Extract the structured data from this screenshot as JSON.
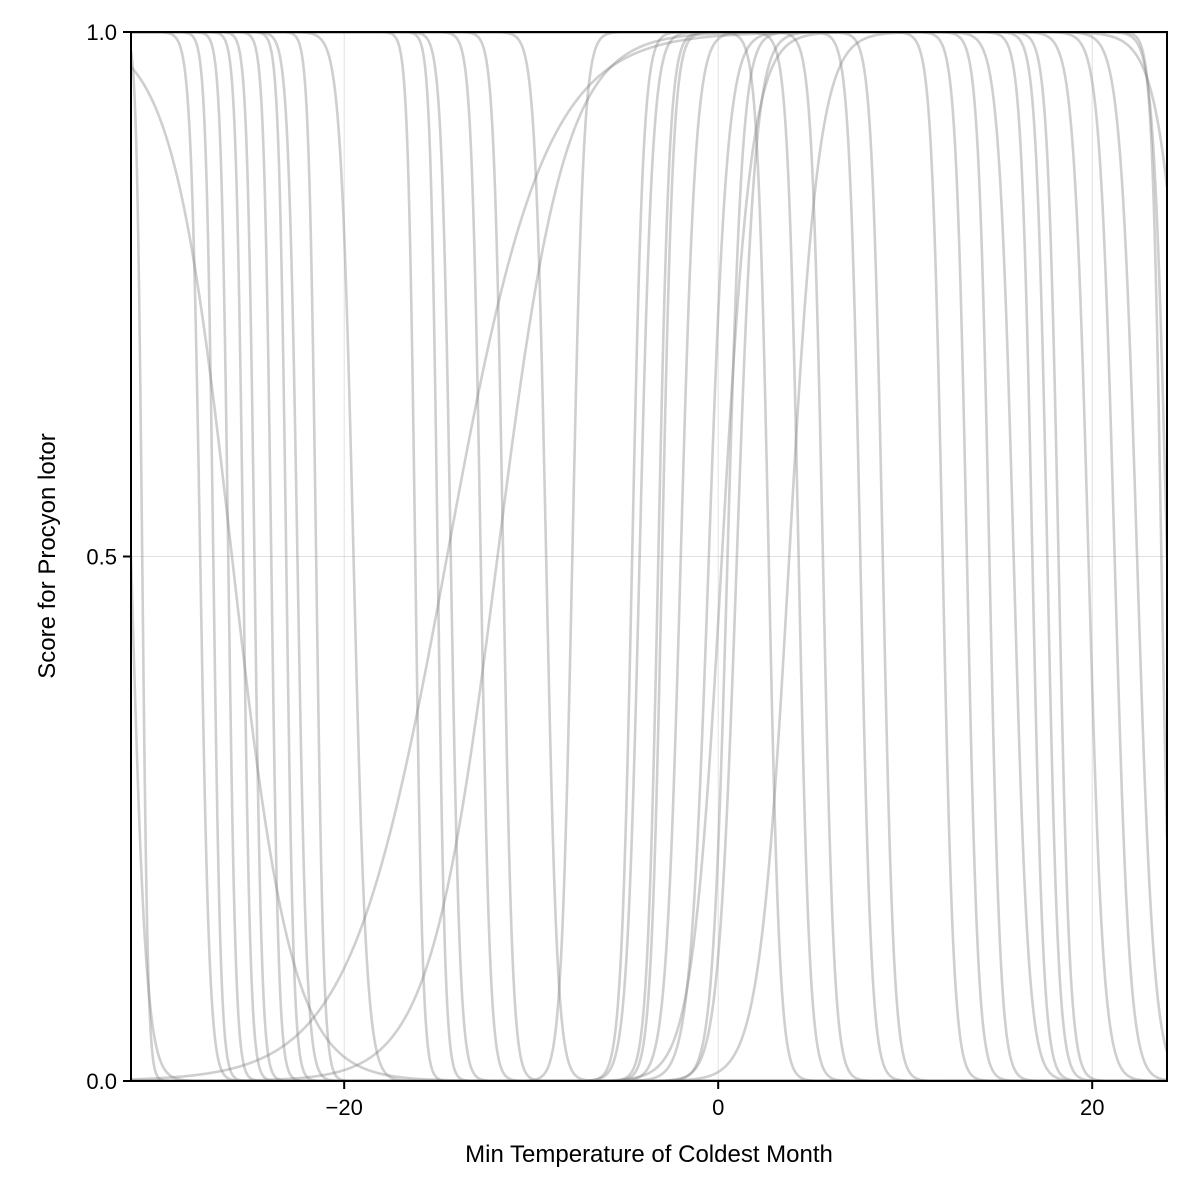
{
  "chart_data": {
    "type": "line",
    "xlabel": "Min Temperature of Coldest Month",
    "ylabel": "Score for Procyon lotor",
    "xlim": [
      -31.4,
      24.0
    ],
    "ylim": [
      0,
      1
    ],
    "xticks": [
      -20,
      0,
      20
    ],
    "xtick_labels": [
      "−20",
      "0",
      "20"
    ],
    "yticks": [
      0,
      0.5,
      1
    ],
    "ytick_labels": [
      "0.0",
      "0.5",
      "1.0"
    ],
    "grid": true,
    "legend": "none",
    "line_color": "#808080",
    "curve_model": "score = L(x) * U(x), L = 1/(1+exp(-(x-lower)/lower_width)), U = 1/(1+exp((x-upper)/upper_width)); null bound means unbounded",
    "series": [
      {
        "lower": null,
        "lower_width": null,
        "upper": -31.4,
        "upper_width": 0.4
      },
      {
        "lower": null,
        "lower_width": null,
        "upper": -30.8,
        "upper_width": 0.15
      },
      {
        "lower": null,
        "lower_width": null,
        "upper": -26.0,
        "upper_width": 1.6
      },
      {
        "lower": null,
        "lower_width": null,
        "upper": -27.7,
        "upper_width": 0.25
      },
      {
        "lower": null,
        "lower_width": null,
        "upper": -27.0,
        "upper_width": 0.2
      },
      {
        "lower": null,
        "lower_width": null,
        "upper": -26.2,
        "upper_width": 0.2
      },
      {
        "lower": null,
        "lower_width": null,
        "upper": -25.4,
        "upper_width": 0.2
      },
      {
        "lower": null,
        "lower_width": null,
        "upper": -24.8,
        "upper_width": 0.2
      },
      {
        "lower": null,
        "lower_width": null,
        "upper": -23.9,
        "upper_width": 0.2
      },
      {
        "lower": null,
        "lower_width": null,
        "upper": -23.1,
        "upper_width": 0.2
      },
      {
        "lower": null,
        "lower_width": null,
        "upper": -22.5,
        "upper_width": 0.25
      },
      {
        "lower": null,
        "lower_width": null,
        "upper": -21.5,
        "upper_width": 0.2
      },
      {
        "lower": null,
        "lower_width": null,
        "upper": -19.5,
        "upper_width": 0.35
      },
      {
        "lower": null,
        "lower_width": null,
        "upper": -16.2,
        "upper_width": 0.2
      },
      {
        "lower": null,
        "lower_width": null,
        "upper": -15.0,
        "upper_width": 0.2
      },
      {
        "lower": null,
        "lower_width": null,
        "upper": -14.3,
        "upper_width": 0.25
      },
      {
        "lower": null,
        "lower_width": null,
        "upper": -12.7,
        "upper_width": 0.25
      },
      {
        "lower": null,
        "lower_width": null,
        "upper": -11.5,
        "upper_width": 0.25
      },
      {
        "lower": null,
        "lower_width": null,
        "upper": -9.2,
        "upper_width": 0.3
      },
      {
        "lower": -14.5,
        "lower_width": 2.6,
        "upper": null,
        "upper_width": null
      },
      {
        "lower": -11.8,
        "lower_width": 1.8,
        "upper": null,
        "upper_width": null
      },
      {
        "lower": -7.8,
        "lower_width": 0.3,
        "upper": null,
        "upper_width": null
      },
      {
        "lower": -3.2,
        "lower_width": 0.3,
        "upper": 12.0,
        "upper_width": 0.3
      },
      {
        "lower": -3.0,
        "lower_width": 0.3,
        "upper": 13.3,
        "upper_width": 0.3
      },
      {
        "lower": -4.6,
        "lower_width": 0.3,
        "upper": 2.7,
        "upper_width": 0.3
      },
      {
        "lower": -4.2,
        "lower_width": 0.35,
        "upper": 4.3,
        "upper_width": 0.3
      },
      {
        "lower": -2.0,
        "lower_width": 0.4,
        "upper": 5.6,
        "upper_width": 0.3
      },
      {
        "lower": -0.5,
        "lower_width": 0.5,
        "upper": 7.6,
        "upper_width": 0.3
      },
      {
        "lower": 0.2,
        "lower_width": 0.8,
        "upper": 8.8,
        "upper_width": 0.3
      },
      {
        "lower": 3.8,
        "lower_width": 0.8,
        "upper": 14.5,
        "upper_width": 0.3
      },
      {
        "lower": 0.5,
        "lower_width": 0.4,
        "upper": 15.8,
        "upper_width": 0.4
      },
      {
        "lower": 1.0,
        "lower_width": 0.5,
        "upper": 16.8,
        "upper_width": 0.3
      },
      {
        "lower": null,
        "lower_width": null,
        "upper": 17.6,
        "upper_width": 0.3
      },
      {
        "lower": null,
        "lower_width": null,
        "upper": 18.2,
        "upper_width": 0.3
      },
      {
        "lower": null,
        "lower_width": null,
        "upper": 19.8,
        "upper_width": 0.4
      },
      {
        "lower": null,
        "lower_width": null,
        "upper": 21.2,
        "upper_width": 0.4
      },
      {
        "lower": null,
        "lower_width": null,
        "upper": 22.4,
        "upper_width": 0.45
      },
      {
        "lower": null,
        "lower_width": null,
        "upper": 23.7,
        "upper_width": 0.25
      },
      {
        "lower": null,
        "lower_width": null,
        "upper": 24.0,
        "upper_width": 0.35
      },
      {
        "lower": null,
        "lower_width": null,
        "upper": 25.4,
        "upper_width": 0.8
      }
    ]
  }
}
